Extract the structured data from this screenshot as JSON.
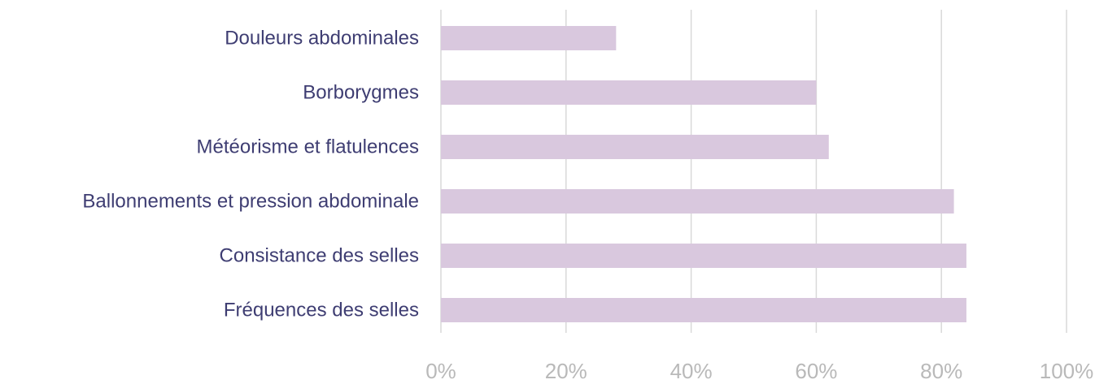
{
  "chart_data": {
    "type": "bar",
    "orientation": "horizontal",
    "categories": [
      "Douleurs abdominales",
      "Borborygmes",
      "Météorisme et flatulences",
      "Ballonnements et pression abdominale",
      "Consistance des selles",
      "Fréquences des selles"
    ],
    "values": [
      28,
      60,
      62,
      82,
      84,
      84
    ],
    "xlim": [
      0,
      100
    ],
    "xticks": [
      "0%",
      "20%",
      "40%",
      "60%",
      "80%",
      "100%"
    ],
    "grid": true,
    "legend": false
  },
  "colors": {
    "bar": "#d9c8de",
    "category_text": "#3e3d72",
    "tick_text": "#b9b9b9",
    "grid": "#d9d9d9"
  }
}
